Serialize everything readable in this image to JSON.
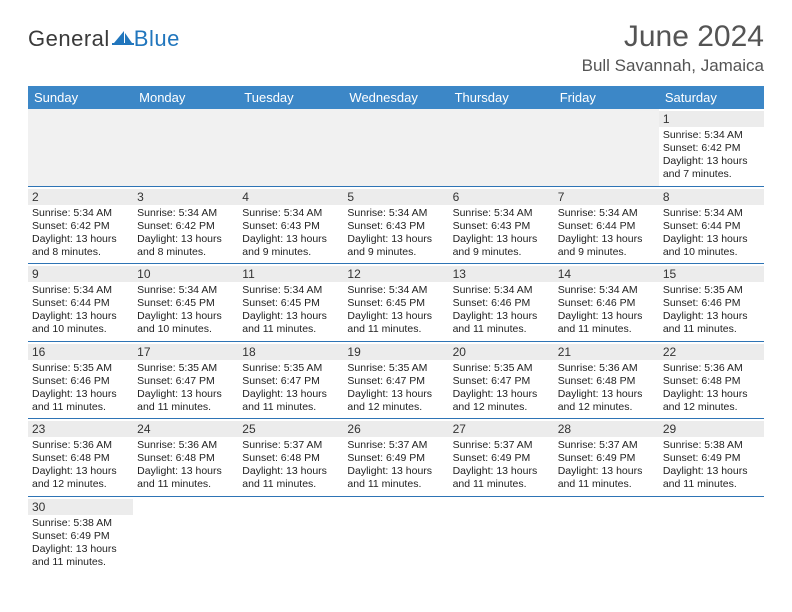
{
  "brand": {
    "general": "General",
    "blue": "Blue",
    "sail_color": "#2176bd"
  },
  "title": "June 2024",
  "location": "Bull Savannah, Jamaica",
  "colors": {
    "header_bg": "#3c87c7",
    "header_text": "#ffffff",
    "divider": "#2e74b5",
    "daynum_bg": "#ececec",
    "blank_bg": "#f1f1f1",
    "title_text": "#545454"
  },
  "fonts": {
    "title_size_pt": 30,
    "location_size_pt": 17,
    "header_size_pt": 13,
    "daynum_size_pt": 12,
    "body_size_pt": 10.5
  },
  "day_headers": [
    "Sunday",
    "Monday",
    "Tuesday",
    "Wednesday",
    "Thursday",
    "Friday",
    "Saturday"
  ],
  "weeks": [
    [
      null,
      null,
      null,
      null,
      null,
      null,
      {
        "n": "1",
        "sunrise": "Sunrise: 5:34 AM",
        "sunset": "Sunset: 6:42 PM",
        "day1": "Daylight: 13 hours",
        "day2": "and 7 minutes."
      }
    ],
    [
      {
        "n": "2",
        "sunrise": "Sunrise: 5:34 AM",
        "sunset": "Sunset: 6:42 PM",
        "day1": "Daylight: 13 hours",
        "day2": "and 8 minutes."
      },
      {
        "n": "3",
        "sunrise": "Sunrise: 5:34 AM",
        "sunset": "Sunset: 6:42 PM",
        "day1": "Daylight: 13 hours",
        "day2": "and 8 minutes."
      },
      {
        "n": "4",
        "sunrise": "Sunrise: 5:34 AM",
        "sunset": "Sunset: 6:43 PM",
        "day1": "Daylight: 13 hours",
        "day2": "and 9 minutes."
      },
      {
        "n": "5",
        "sunrise": "Sunrise: 5:34 AM",
        "sunset": "Sunset: 6:43 PM",
        "day1": "Daylight: 13 hours",
        "day2": "and 9 minutes."
      },
      {
        "n": "6",
        "sunrise": "Sunrise: 5:34 AM",
        "sunset": "Sunset: 6:43 PM",
        "day1": "Daylight: 13 hours",
        "day2": "and 9 minutes."
      },
      {
        "n": "7",
        "sunrise": "Sunrise: 5:34 AM",
        "sunset": "Sunset: 6:44 PM",
        "day1": "Daylight: 13 hours",
        "day2": "and 9 minutes."
      },
      {
        "n": "8",
        "sunrise": "Sunrise: 5:34 AM",
        "sunset": "Sunset: 6:44 PM",
        "day1": "Daylight: 13 hours",
        "day2": "and 10 minutes."
      }
    ],
    [
      {
        "n": "9",
        "sunrise": "Sunrise: 5:34 AM",
        "sunset": "Sunset: 6:44 PM",
        "day1": "Daylight: 13 hours",
        "day2": "and 10 minutes."
      },
      {
        "n": "10",
        "sunrise": "Sunrise: 5:34 AM",
        "sunset": "Sunset: 6:45 PM",
        "day1": "Daylight: 13 hours",
        "day2": "and 10 minutes."
      },
      {
        "n": "11",
        "sunrise": "Sunrise: 5:34 AM",
        "sunset": "Sunset: 6:45 PM",
        "day1": "Daylight: 13 hours",
        "day2": "and 11 minutes."
      },
      {
        "n": "12",
        "sunrise": "Sunrise: 5:34 AM",
        "sunset": "Sunset: 6:45 PM",
        "day1": "Daylight: 13 hours",
        "day2": "and 11 minutes."
      },
      {
        "n": "13",
        "sunrise": "Sunrise: 5:34 AM",
        "sunset": "Sunset: 6:46 PM",
        "day1": "Daylight: 13 hours",
        "day2": "and 11 minutes."
      },
      {
        "n": "14",
        "sunrise": "Sunrise: 5:34 AM",
        "sunset": "Sunset: 6:46 PM",
        "day1": "Daylight: 13 hours",
        "day2": "and 11 minutes."
      },
      {
        "n": "15",
        "sunrise": "Sunrise: 5:35 AM",
        "sunset": "Sunset: 6:46 PM",
        "day1": "Daylight: 13 hours",
        "day2": "and 11 minutes."
      }
    ],
    [
      {
        "n": "16",
        "sunrise": "Sunrise: 5:35 AM",
        "sunset": "Sunset: 6:46 PM",
        "day1": "Daylight: 13 hours",
        "day2": "and 11 minutes."
      },
      {
        "n": "17",
        "sunrise": "Sunrise: 5:35 AM",
        "sunset": "Sunset: 6:47 PM",
        "day1": "Daylight: 13 hours",
        "day2": "and 11 minutes."
      },
      {
        "n": "18",
        "sunrise": "Sunrise: 5:35 AM",
        "sunset": "Sunset: 6:47 PM",
        "day1": "Daylight: 13 hours",
        "day2": "and 11 minutes."
      },
      {
        "n": "19",
        "sunrise": "Sunrise: 5:35 AM",
        "sunset": "Sunset: 6:47 PM",
        "day1": "Daylight: 13 hours",
        "day2": "and 12 minutes."
      },
      {
        "n": "20",
        "sunrise": "Sunrise: 5:35 AM",
        "sunset": "Sunset: 6:47 PM",
        "day1": "Daylight: 13 hours",
        "day2": "and 12 minutes."
      },
      {
        "n": "21",
        "sunrise": "Sunrise: 5:36 AM",
        "sunset": "Sunset: 6:48 PM",
        "day1": "Daylight: 13 hours",
        "day2": "and 12 minutes."
      },
      {
        "n": "22",
        "sunrise": "Sunrise: 5:36 AM",
        "sunset": "Sunset: 6:48 PM",
        "day1": "Daylight: 13 hours",
        "day2": "and 12 minutes."
      }
    ],
    [
      {
        "n": "23",
        "sunrise": "Sunrise: 5:36 AM",
        "sunset": "Sunset: 6:48 PM",
        "day1": "Daylight: 13 hours",
        "day2": "and 12 minutes."
      },
      {
        "n": "24",
        "sunrise": "Sunrise: 5:36 AM",
        "sunset": "Sunset: 6:48 PM",
        "day1": "Daylight: 13 hours",
        "day2": "and 11 minutes."
      },
      {
        "n": "25",
        "sunrise": "Sunrise: 5:37 AM",
        "sunset": "Sunset: 6:48 PM",
        "day1": "Daylight: 13 hours",
        "day2": "and 11 minutes."
      },
      {
        "n": "26",
        "sunrise": "Sunrise: 5:37 AM",
        "sunset": "Sunset: 6:49 PM",
        "day1": "Daylight: 13 hours",
        "day2": "and 11 minutes."
      },
      {
        "n": "27",
        "sunrise": "Sunrise: 5:37 AM",
        "sunset": "Sunset: 6:49 PM",
        "day1": "Daylight: 13 hours",
        "day2": "and 11 minutes."
      },
      {
        "n": "28",
        "sunrise": "Sunrise: 5:37 AM",
        "sunset": "Sunset: 6:49 PM",
        "day1": "Daylight: 13 hours",
        "day2": "and 11 minutes."
      },
      {
        "n": "29",
        "sunrise": "Sunrise: 5:38 AM",
        "sunset": "Sunset: 6:49 PM",
        "day1": "Daylight: 13 hours",
        "day2": "and 11 minutes."
      }
    ],
    [
      {
        "n": "30",
        "sunrise": "Sunrise: 5:38 AM",
        "sunset": "Sunset: 6:49 PM",
        "day1": "Daylight: 13 hours",
        "day2": "and 11 minutes."
      },
      null,
      null,
      null,
      null,
      null,
      null
    ]
  ]
}
